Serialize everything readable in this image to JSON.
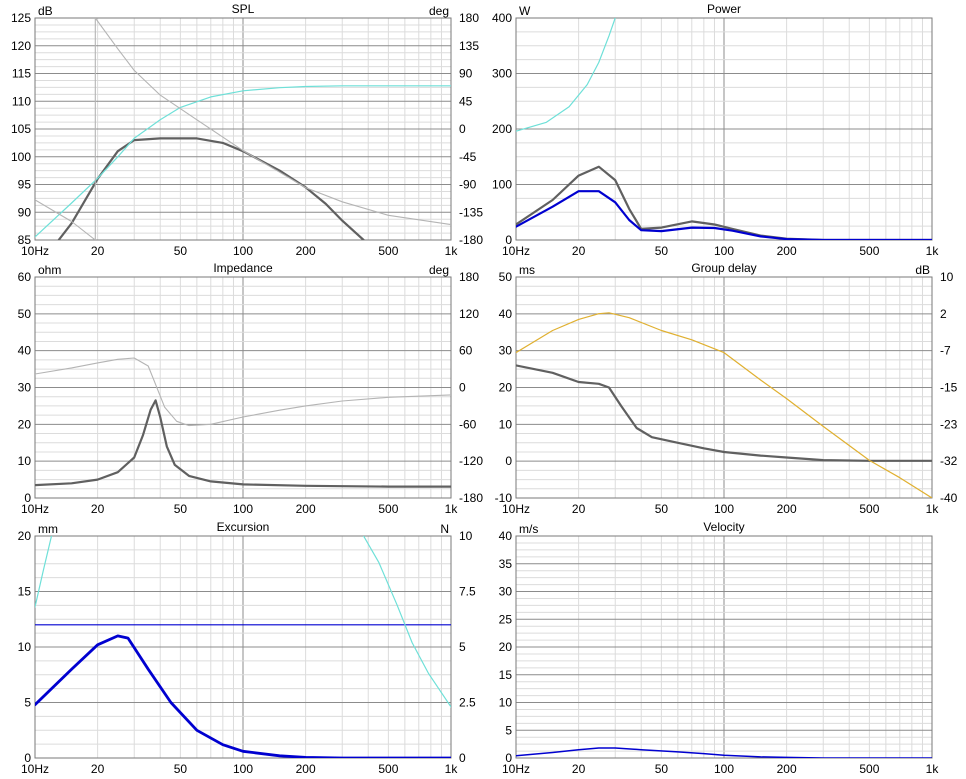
{
  "colors": {
    "grid_minor": "#dcdcdc",
    "grid_major": "#8c8c8c",
    "border": "#7a7a7a",
    "dark_gray": "#606060",
    "light_gray": "#b4b4b4",
    "cyan": "#6ee0d8",
    "blue": "#0000d0",
    "gold": "#e0b030"
  },
  "chart_data": [
    {
      "id": "spl",
      "type": "line",
      "title": "SPL",
      "ylabel": "dB",
      "y2label": "deg",
      "xscale": "log",
      "xlim": [
        10,
        1000
      ],
      "ylim": [
        85,
        125
      ],
      "y2lim": [
        -180,
        180
      ],
      "x_ticks": [
        "10Hz",
        "20",
        "50",
        "100",
        "200",
        "500",
        "1k"
      ],
      "y_ticks": [
        "85",
        "90",
        "95",
        "100",
        "105",
        "110",
        "115",
        "120",
        "125"
      ],
      "y2_ticks": [
        "-180",
        "-135",
        "-90",
        "-45",
        "0",
        "45",
        "90",
        "135",
        "180"
      ],
      "series": [
        {
          "axis": "y",
          "color_key": "dark_gray",
          "width": 2.2,
          "points": [
            [
              13,
              85
            ],
            [
              15,
              88
            ],
            [
              20,
              96
            ],
            [
              25,
              101
            ],
            [
              30,
              103
            ],
            [
              40,
              103.3
            ],
            [
              60,
              103.3
            ],
            [
              80,
              102.5
            ],
            [
              100,
              101
            ],
            [
              150,
              97.5
            ],
            [
              200,
              94.5
            ],
            [
              250,
              91.5
            ],
            [
              300,
              88.5
            ],
            [
              380,
              85
            ]
          ]
        },
        {
          "axis": "y2",
          "color_key": "cyan",
          "width": 1.2,
          "points": [
            [
              10,
              -175
            ],
            [
              15,
              -120
            ],
            [
              20,
              -80
            ],
            [
              25,
              -45
            ],
            [
              30,
              -15
            ],
            [
              40,
              15
            ],
            [
              50,
              35
            ],
            [
              70,
              52
            ],
            [
              100,
              62
            ],
            [
              150,
              67
            ],
            [
              200,
              69
            ],
            [
              300,
              70
            ],
            [
              500,
              70
            ],
            [
              1000,
              70
            ]
          ]
        },
        {
          "axis": "y2",
          "color_key": "light_gray",
          "width": 1.1,
          "points": [
            [
              10,
              -115
            ],
            [
              15,
              -150
            ],
            [
              19.5,
              -180
            ],
            [
              19.5,
              180
            ],
            [
              25,
              130
            ],
            [
              30,
              95
            ],
            [
              40,
              55
            ],
            [
              60,
              15
            ],
            [
              100,
              -35
            ],
            [
              150,
              -70
            ],
            [
              200,
              -95
            ],
            [
              300,
              -118
            ],
            [
              500,
              -140
            ],
            [
              1000,
              -155
            ]
          ]
        }
      ]
    },
    {
      "id": "power",
      "type": "line",
      "title": "Power",
      "ylabel": "W",
      "xscale": "log",
      "xlim": [
        10,
        1000
      ],
      "ylim": [
        0,
        500
      ],
      "x_ticks": [
        "10Hz",
        "20",
        "50",
        "100",
        "200",
        "500",
        "1k"
      ],
      "y_ticks": [
        "0",
        "100",
        "200",
        "300",
        "400"
      ],
      "series": [
        {
          "axis": "y",
          "color_key": "cyan",
          "width": 1.2,
          "points": [
            [
              10,
              245
            ],
            [
              14,
              265
            ],
            [
              18,
              300
            ],
            [
              22,
              350
            ],
            [
              25,
              400
            ],
            [
              28,
              460
            ],
            [
              30,
              500
            ]
          ]
        },
        {
          "axis": "y",
          "color_key": "dark_gray",
          "width": 2.2,
          "points": [
            [
              10,
              35
            ],
            [
              15,
              90
            ],
            [
              20,
              145
            ],
            [
              25,
              165
            ],
            [
              30,
              135
            ],
            [
              35,
              70
            ],
            [
              40,
              25
            ],
            [
              50,
              28
            ],
            [
              70,
              42
            ],
            [
              90,
              35
            ],
            [
              110,
              25
            ],
            [
              150,
              10
            ],
            [
              200,
              3
            ],
            [
              300,
              0
            ],
            [
              1000,
              0
            ]
          ]
        },
        {
          "axis": "y",
          "color_key": "blue",
          "width": 2.2,
          "points": [
            [
              10,
              30
            ],
            [
              15,
              75
            ],
            [
              20,
              110
            ],
            [
              25,
              110
            ],
            [
              30,
              85
            ],
            [
              35,
              45
            ],
            [
              40,
              22
            ],
            [
              50,
              20
            ],
            [
              70,
              28
            ],
            [
              90,
              27
            ],
            [
              110,
              21
            ],
            [
              150,
              8
            ],
            [
              200,
              2
            ],
            [
              300,
              0
            ],
            [
              1000,
              0
            ]
          ]
        }
      ]
    },
    {
      "id": "impedance",
      "type": "line",
      "title": "Impedance",
      "ylabel": "ohm",
      "y2label": "deg",
      "xscale": "log",
      "xlim": [
        10,
        1000
      ],
      "ylim": [
        0,
        60
      ],
      "y2lim": [
        -180,
        180
      ],
      "x_ticks": [
        "10Hz",
        "20",
        "50",
        "100",
        "200",
        "500",
        "1k"
      ],
      "y_ticks": [
        "0",
        "10",
        "20",
        "30",
        "40",
        "50",
        "60"
      ],
      "y2_ticks": [
        "-180",
        "-120",
        "-60",
        "0",
        "60",
        "120",
        "180"
      ],
      "series": [
        {
          "axis": "y",
          "color_key": "dark_gray",
          "width": 2.2,
          "points": [
            [
              10,
              3.5
            ],
            [
              15,
              4
            ],
            [
              20,
              5
            ],
            [
              25,
              7
            ],
            [
              30,
              11
            ],
            [
              33,
              17
            ],
            [
              36,
              24
            ],
            [
              38,
              26.5
            ],
            [
              40,
              22
            ],
            [
              43,
              14
            ],
            [
              47,
              9
            ],
            [
              55,
              6
            ],
            [
              70,
              4.5
            ],
            [
              100,
              3.7
            ],
            [
              200,
              3.3
            ],
            [
              500,
              3.1
            ],
            [
              1000,
              3.1
            ]
          ]
        },
        {
          "axis": "y2",
          "color_key": "light_gray",
          "width": 1.1,
          "points": [
            [
              10,
              22
            ],
            [
              15,
              32
            ],
            [
              20,
              40
            ],
            [
              25,
              46
            ],
            [
              30,
              48
            ],
            [
              35,
              35
            ],
            [
              38,
              5
            ],
            [
              42,
              -32
            ],
            [
              48,
              -55
            ],
            [
              55,
              -62
            ],
            [
              70,
              -60
            ],
            [
              100,
              -48
            ],
            [
              150,
              -37
            ],
            [
              200,
              -30
            ],
            [
              300,
              -22
            ],
            [
              500,
              -16
            ],
            [
              1000,
              -12
            ]
          ]
        }
      ]
    },
    {
      "id": "group_delay",
      "type": "line",
      "title": "Group delay",
      "ylabel": "ms",
      "y2label": "dB",
      "xscale": "log",
      "xlim": [
        10,
        1000
      ],
      "ylim": [
        -10,
        50
      ],
      "y2lim": [
        -40,
        10
      ],
      "x_ticks": [
        "10Hz",
        "20",
        "50",
        "100",
        "200",
        "500",
        "1k"
      ],
      "y_ticks": [
        "-10",
        "0",
        "10",
        "20",
        "30",
        "40",
        "50"
      ],
      "y2_ticks": [
        "-40",
        "-32",
        "-23",
        "-15",
        "-7",
        "2",
        "10"
      ],
      "series": [
        {
          "axis": "y",
          "color_key": "dark_gray",
          "width": 2.2,
          "points": [
            [
              10,
              26
            ],
            [
              15,
              24
            ],
            [
              20,
              21.5
            ],
            [
              25,
              21
            ],
            [
              28,
              20
            ],
            [
              32,
              15
            ],
            [
              38,
              9
            ],
            [
              45,
              6.5
            ],
            [
              60,
              5
            ],
            [
              80,
              3.5
            ],
            [
              100,
              2.5
            ],
            [
              150,
              1.5
            ],
            [
              200,
              1
            ],
            [
              300,
              0.3
            ],
            [
              500,
              0.1
            ],
            [
              1000,
              0.1
            ]
          ]
        },
        {
          "axis": "y2",
          "color_key": "gold",
          "width": 1.2,
          "points": [
            [
              10,
              -7.1
            ],
            [
              15,
              -2.1
            ],
            [
              20,
              0.4
            ],
            [
              25,
              1.7
            ],
            [
              28,
              1.9
            ],
            [
              35,
              0.8
            ],
            [
              50,
              -2.1
            ],
            [
              70,
              -4.2
            ],
            [
              100,
              -7.1
            ],
            [
              150,
              -13.3
            ],
            [
              200,
              -17.5
            ],
            [
              300,
              -23.8
            ],
            [
              500,
              -31.5
            ],
            [
              700,
              -35.4
            ],
            [
              1000,
              -40
            ]
          ]
        }
      ]
    },
    {
      "id": "excursion",
      "type": "line",
      "title": "Excursion",
      "ylabel": "mm",
      "y2label": "N",
      "xscale": "log",
      "xlim": [
        10,
        1000
      ],
      "ylim": [
        0,
        20
      ],
      "y2lim": [
        0,
        10
      ],
      "x_ticks": [
        "10Hz",
        "20",
        "50",
        "100",
        "200",
        "500",
        "1k"
      ],
      "y_ticks": [
        "0",
        "5",
        "10",
        "15",
        "20"
      ],
      "y2_ticks": [
        "0",
        "2.5",
        "5",
        "7.5",
        "10"
      ],
      "series": [
        {
          "axis": "y",
          "color_key": "blue",
          "width": 1.2,
          "points": [
            [
              10,
              12
            ],
            [
              1000,
              12
            ]
          ]
        },
        {
          "axis": "y",
          "color_key": "blue",
          "width": 2.8,
          "points": [
            [
              10,
              4.8
            ],
            [
              15,
              8
            ],
            [
              20,
              10.2
            ],
            [
              25,
              11
            ],
            [
              28,
              10.8
            ],
            [
              35,
              8
            ],
            [
              45,
              5
            ],
            [
              60,
              2.5
            ],
            [
              80,
              1.2
            ],
            [
              100,
              0.6
            ],
            [
              150,
              0.2
            ],
            [
              200,
              0.05
            ],
            [
              300,
              0
            ],
            [
              1000,
              0
            ]
          ]
        },
        {
          "axis": "y2",
          "color_key": "cyan",
          "width": 1.2,
          "points": [
            [
              10,
              6.8
            ],
            [
              11,
              8.5
            ],
            [
              12,
              10
            ]
          ]
        },
        {
          "axis": "y2",
          "color_key": "cyan",
          "width": 1.2,
          "points": [
            [
              380,
              10
            ],
            [
              450,
              8.8
            ],
            [
              550,
              6.9
            ],
            [
              650,
              5.2
            ],
            [
              780,
              3.8
            ],
            [
              1000,
              2.3
            ]
          ]
        }
      ]
    },
    {
      "id": "velocity",
      "type": "line",
      "title": "Velocity",
      "ylabel": "m/s",
      "xscale": "log",
      "xlim": [
        10,
        1000
      ],
      "ylim": [
        0,
        40
      ],
      "x_ticks": [
        "10Hz",
        "20",
        "50",
        "100",
        "200",
        "500",
        "1k"
      ],
      "y_ticks": [
        "0",
        "5",
        "10",
        "15",
        "20",
        "25",
        "30",
        "35",
        "40"
      ],
      "series": [
        {
          "axis": "y",
          "color_key": "blue",
          "width": 1.5,
          "points": [
            [
              10,
              0.4
            ],
            [
              15,
              1.0
            ],
            [
              20,
              1.5
            ],
            [
              25,
              1.8
            ],
            [
              30,
              1.8
            ],
            [
              40,
              1.5
            ],
            [
              60,
              1.1
            ],
            [
              80,
              0.8
            ],
            [
              100,
              0.5
            ],
            [
              150,
              0.2
            ],
            [
              200,
              0.1
            ],
            [
              300,
              0
            ],
            [
              1000,
              0
            ]
          ]
        }
      ]
    }
  ]
}
